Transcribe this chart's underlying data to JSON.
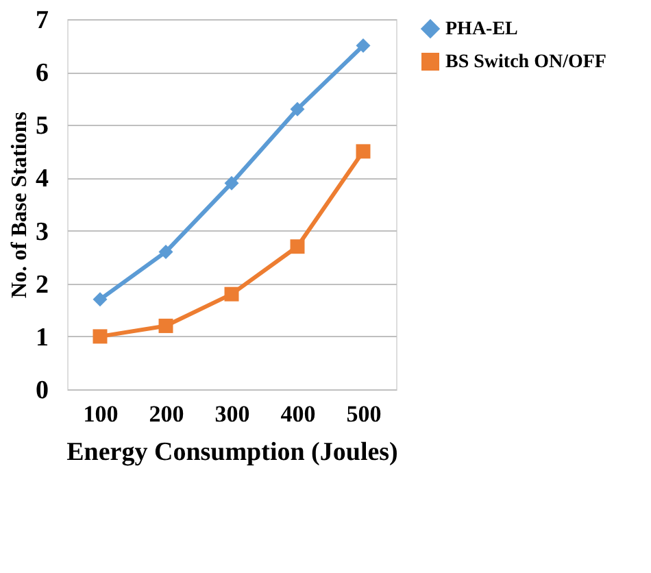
{
  "chart_data": {
    "type": "line",
    "xlabel": "Energy Consumption (Joules)",
    "ylabel": "No. of Base Stations",
    "categories": [
      "100",
      "200",
      "300",
      "400",
      "500"
    ],
    "series": [
      {
        "name": "PHA-EL",
        "color": "#5b9bd5",
        "marker": "diamond",
        "values": [
          1.7,
          2.6,
          3.9,
          5.3,
          6.5
        ]
      },
      {
        "name": "BS Switch ON/OFF",
        "color": "#ed7d31",
        "marker": "square",
        "values": [
          1.0,
          1.2,
          1.8,
          2.7,
          4.5
        ]
      }
    ],
    "ylim": [
      0,
      7
    ],
    "yticks": [
      0,
      1,
      2,
      3,
      4,
      5,
      6,
      7
    ],
    "grid": "y",
    "legend": "right"
  }
}
